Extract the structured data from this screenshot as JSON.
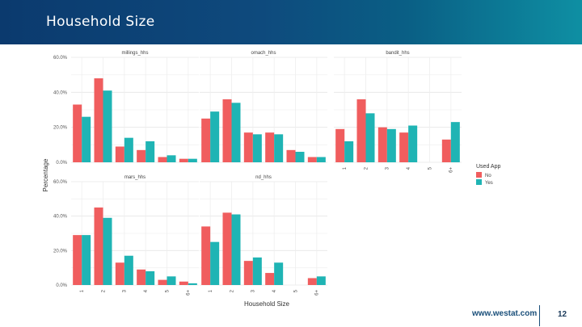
{
  "header": {
    "title": "Household Size"
  },
  "footer": {
    "url": "www.westat.com",
    "page_number": "12"
  },
  "chart_data": {
    "type": "bar",
    "title": "",
    "xlabel": "Household Size",
    "ylabel": "Percentage",
    "ylim": [
      0,
      60
    ],
    "y_ticks": [
      "0.0%",
      "20.0%",
      "40.0%",
      "60.0%"
    ],
    "categories": [
      "1",
      "2",
      "3",
      "4",
      "5",
      "6+"
    ],
    "legend": {
      "title": "Used App",
      "position": "right",
      "entries": [
        {
          "name": "No",
          "color": "#f05d5e"
        },
        {
          "name": "Yes",
          "color": "#1fb4b4"
        }
      ]
    },
    "colors": {
      "No": "#f05d5e",
      "Yes": "#1fb4b4"
    },
    "panels": [
      {
        "title": "millings_hhs",
        "series": [
          {
            "name": "No",
            "values": [
              33,
              48,
              9,
              7,
              3,
              2
            ]
          },
          {
            "name": "Yes",
            "values": [
              26,
              41,
              14,
              12,
              4,
              2
            ]
          }
        ]
      },
      {
        "title": "omach_hhs",
        "series": [
          {
            "name": "No",
            "values": [
              25,
              36,
              17,
              17,
              7,
              3
            ]
          },
          {
            "name": "Yes",
            "values": [
              29,
              34,
              16,
              16,
              6,
              3
            ]
          }
        ]
      },
      {
        "title": "bandit_hhs",
        "series": [
          {
            "name": "No",
            "values": [
              19,
              36,
              20,
              17,
              0,
              13
            ]
          },
          {
            "name": "Yes",
            "values": [
              12,
              28,
              19,
              21,
              0,
              23
            ]
          }
        ]
      },
      {
        "title": "mars_hhs",
        "series": [
          {
            "name": "No",
            "values": [
              29,
              45,
              13,
              9,
              3,
              2
            ]
          },
          {
            "name": "Yes",
            "values": [
              29,
              39,
              17,
              8,
              5,
              1
            ]
          }
        ]
      },
      {
        "title": "nd_hhs",
        "series": [
          {
            "name": "No",
            "values": [
              34,
              42,
              14,
              7,
              0,
              4
            ]
          },
          {
            "name": "Yes",
            "values": [
              25,
              41,
              16,
              13,
              0,
              5
            ]
          }
        ]
      }
    ]
  }
}
